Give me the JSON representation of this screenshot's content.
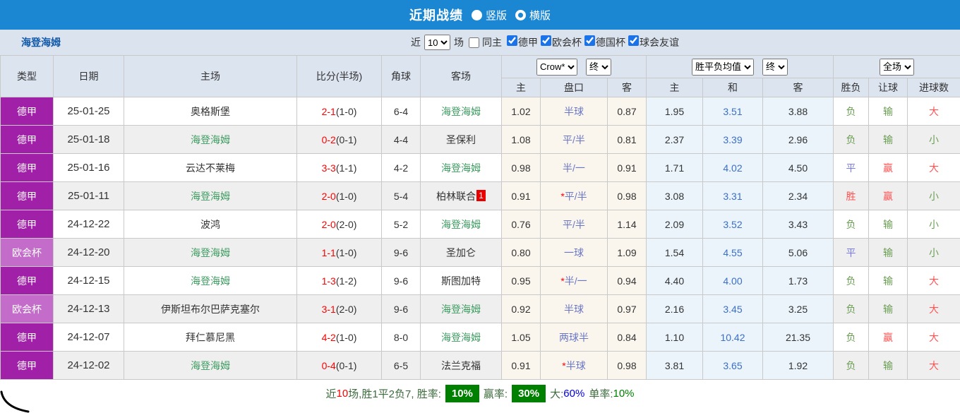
{
  "banner": {
    "title": "近期战绩",
    "radio_vertical_label": "竖版",
    "radio_horizontal_label": "横版",
    "selected": "横版"
  },
  "filter": {
    "team": "海登海姆",
    "near_label": "近",
    "near_value": "10",
    "matches_label": "场",
    "same_home_label": "同主",
    "league_checkboxes": [
      "德甲",
      "欧会杯",
      "德国杯",
      "球会友谊"
    ]
  },
  "table": {
    "headers": {
      "type": "类型",
      "date": "日期",
      "home": "主场",
      "score": "比分(半场)",
      "corners": "角球",
      "away": "客场",
      "crow_select": "Crow*",
      "crow_final_select": "终",
      "avg_select": "胜平负均值",
      "avg_final_select": "终",
      "scope_select": "全场",
      "sub_home": "主",
      "sub_handicap": "盘口",
      "sub_away": "客",
      "sub_avg_home": "主",
      "sub_avg_draw": "和",
      "sub_avg_away": "客",
      "sub_wdl": "胜负",
      "sub_handicap_result": "让球",
      "sub_goals": "进球数"
    },
    "rows": [
      {
        "competition": "德甲",
        "date": "25-01-25",
        "home": "奥格斯堡",
        "home_self": false,
        "score_ft": "2-1",
        "score_ht": "(1-0)",
        "corners": "6-4",
        "away": "海登海姆",
        "away_self": true,
        "away_badge": "",
        "crow_home": "1.02",
        "handicap": "半球",
        "handicap_star": false,
        "crow_away": "0.87",
        "avg_home": "1.95",
        "avg_draw": "3.51",
        "avg_away": "3.88",
        "wdl": "负",
        "handicap_result": "输",
        "goals": "大"
      },
      {
        "competition": "德甲",
        "date": "25-01-18",
        "home": "海登海姆",
        "home_self": true,
        "score_ft": "0-2",
        "score_ht": "(0-1)",
        "corners": "4-4",
        "away": "圣保利",
        "away_self": false,
        "away_badge": "",
        "crow_home": "1.08",
        "handicap": "平/半",
        "handicap_star": false,
        "crow_away": "0.81",
        "avg_home": "2.37",
        "avg_draw": "3.39",
        "avg_away": "2.96",
        "wdl": "负",
        "handicap_result": "输",
        "goals": "小"
      },
      {
        "competition": "德甲",
        "date": "25-01-16",
        "home": "云达不莱梅",
        "home_self": false,
        "score_ft": "3-3",
        "score_ht": "(1-1)",
        "corners": "4-2",
        "away": "海登海姆",
        "away_self": true,
        "away_badge": "",
        "crow_home": "0.98",
        "handicap": "半/一",
        "handicap_star": false,
        "crow_away": "0.91",
        "avg_home": "1.71",
        "avg_draw": "4.02",
        "avg_away": "4.50",
        "wdl": "平",
        "handicap_result": "赢",
        "goals": "大"
      },
      {
        "competition": "德甲",
        "date": "25-01-11",
        "home": "海登海姆",
        "home_self": true,
        "score_ft": "2-0",
        "score_ht": "(1-0)",
        "corners": "5-4",
        "away": "柏林联合",
        "away_self": false,
        "away_badge": "1",
        "crow_home": "0.91",
        "handicap": "平/半",
        "handicap_star": true,
        "crow_away": "0.98",
        "avg_home": "3.08",
        "avg_draw": "3.31",
        "avg_away": "2.34",
        "wdl": "胜",
        "handicap_result": "赢",
        "goals": "小"
      },
      {
        "competition": "德甲",
        "date": "24-12-22",
        "home": "波鸿",
        "home_self": false,
        "score_ft": "2-0",
        "score_ht": "(2-0)",
        "corners": "5-2",
        "away": "海登海姆",
        "away_self": true,
        "away_badge": "",
        "crow_home": "0.76",
        "handicap": "平/半",
        "handicap_star": false,
        "crow_away": "1.14",
        "avg_home": "2.09",
        "avg_draw": "3.52",
        "avg_away": "3.43",
        "wdl": "负",
        "handicap_result": "输",
        "goals": "小"
      },
      {
        "competition": "欧会杯",
        "date": "24-12-20",
        "home": "海登海姆",
        "home_self": true,
        "score_ft": "1-1",
        "score_ht": "(1-0)",
        "corners": "9-6",
        "away": "圣加仑",
        "away_self": false,
        "away_badge": "",
        "crow_home": "0.80",
        "handicap": "一球",
        "handicap_star": false,
        "crow_away": "1.09",
        "avg_home": "1.54",
        "avg_draw": "4.55",
        "avg_away": "5.06",
        "wdl": "平",
        "handicap_result": "输",
        "goals": "小"
      },
      {
        "competition": "德甲",
        "date": "24-12-15",
        "home": "海登海姆",
        "home_self": true,
        "score_ft": "1-3",
        "score_ht": "(1-2)",
        "corners": "9-6",
        "away": "斯图加特",
        "away_self": false,
        "away_badge": "",
        "crow_home": "0.95",
        "handicap": "半/一",
        "handicap_star": true,
        "crow_away": "0.94",
        "avg_home": "4.40",
        "avg_draw": "4.00",
        "avg_away": "1.73",
        "wdl": "负",
        "handicap_result": "输",
        "goals": "大"
      },
      {
        "competition": "欧会杯",
        "date": "24-12-13",
        "home": "伊斯坦布尔巴萨克塞尔",
        "home_self": false,
        "score_ft": "3-1",
        "score_ht": "(2-0)",
        "corners": "9-6",
        "away": "海登海姆",
        "away_self": true,
        "away_badge": "",
        "crow_home": "0.92",
        "handicap": "半球",
        "handicap_star": false,
        "crow_away": "0.97",
        "avg_home": "2.16",
        "avg_draw": "3.45",
        "avg_away": "3.25",
        "wdl": "负",
        "handicap_result": "输",
        "goals": "大"
      },
      {
        "competition": "德甲",
        "date": "24-12-07",
        "home": "拜仁慕尼黑",
        "home_self": false,
        "score_ft": "4-2",
        "score_ht": "(1-0)",
        "corners": "8-0",
        "away": "海登海姆",
        "away_self": true,
        "away_badge": "",
        "crow_home": "1.05",
        "handicap": "两球半",
        "handicap_star": false,
        "crow_away": "0.84",
        "avg_home": "1.10",
        "avg_draw": "10.42",
        "avg_away": "21.35",
        "wdl": "负",
        "handicap_result": "赢",
        "goals": "大"
      },
      {
        "competition": "德甲",
        "date": "24-12-02",
        "home": "海登海姆",
        "home_self": true,
        "score_ft": "0-4",
        "score_ht": "(0-1)",
        "corners": "6-5",
        "away": "法兰克福",
        "away_self": false,
        "away_badge": "",
        "crow_home": "0.91",
        "handicap": "半球",
        "handicap_star": true,
        "crow_away": "0.98",
        "avg_home": "3.81",
        "avg_draw": "3.65",
        "avg_away": "1.92",
        "wdl": "负",
        "handicap_result": "输",
        "goals": "大"
      }
    ]
  },
  "footer": {
    "prefix": "近",
    "count": "10",
    "summary": "场,胜1平2负7, 胜率:",
    "win_rate": "10%",
    "profit_label": "赢率:",
    "profit_rate": "30%",
    "big_label": "大:",
    "big_rate": "60%",
    "single_label": "单率:",
    "single_rate": "10%"
  },
  "colors": {
    "banner_blue": "#1b87d3",
    "league_purple": "#a020a8",
    "cup_purple": "#c46cca",
    "self_team_green": "#3e9c60",
    "score_red": "#ff0000",
    "handicap_blue": "#6a76c4",
    "avg_draw_blue": "#3b6fc9",
    "result_win_red": "#ff5252",
    "result_lose_green": "#6b9e53",
    "result_draw_blue": "#7a7ae8",
    "badge_green": "#008000"
  }
}
